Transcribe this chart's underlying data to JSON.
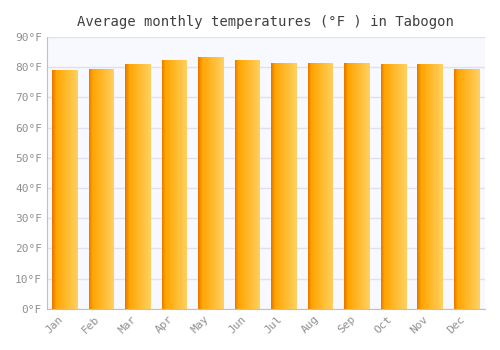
{
  "title": "Average monthly temperatures (°F ) in Tabogon",
  "months": [
    "Jan",
    "Feb",
    "Mar",
    "Apr",
    "May",
    "Jun",
    "Jul",
    "Aug",
    "Sep",
    "Oct",
    "Nov",
    "Dec"
  ],
  "values": [
    79.0,
    79.5,
    81.0,
    82.5,
    83.5,
    82.5,
    81.5,
    81.5,
    81.5,
    81.0,
    81.0,
    79.5
  ],
  "bar_color_left": "#E87800",
  "bar_color_mid": "#FFA500",
  "bar_color_right": "#FFD060",
  "background_color": "#FFFFFF",
  "plot_bg_color": "#F8F8FF",
  "grid_color": "#E0E0F0",
  "yticks": [
    0,
    10,
    20,
    30,
    40,
    50,
    60,
    70,
    80,
    90
  ],
  "ylim": [
    0,
    90
  ],
  "title_fontsize": 10,
  "tick_fontsize": 8,
  "title_color": "#404040",
  "tick_color": "#909090",
  "bar_width": 0.7
}
